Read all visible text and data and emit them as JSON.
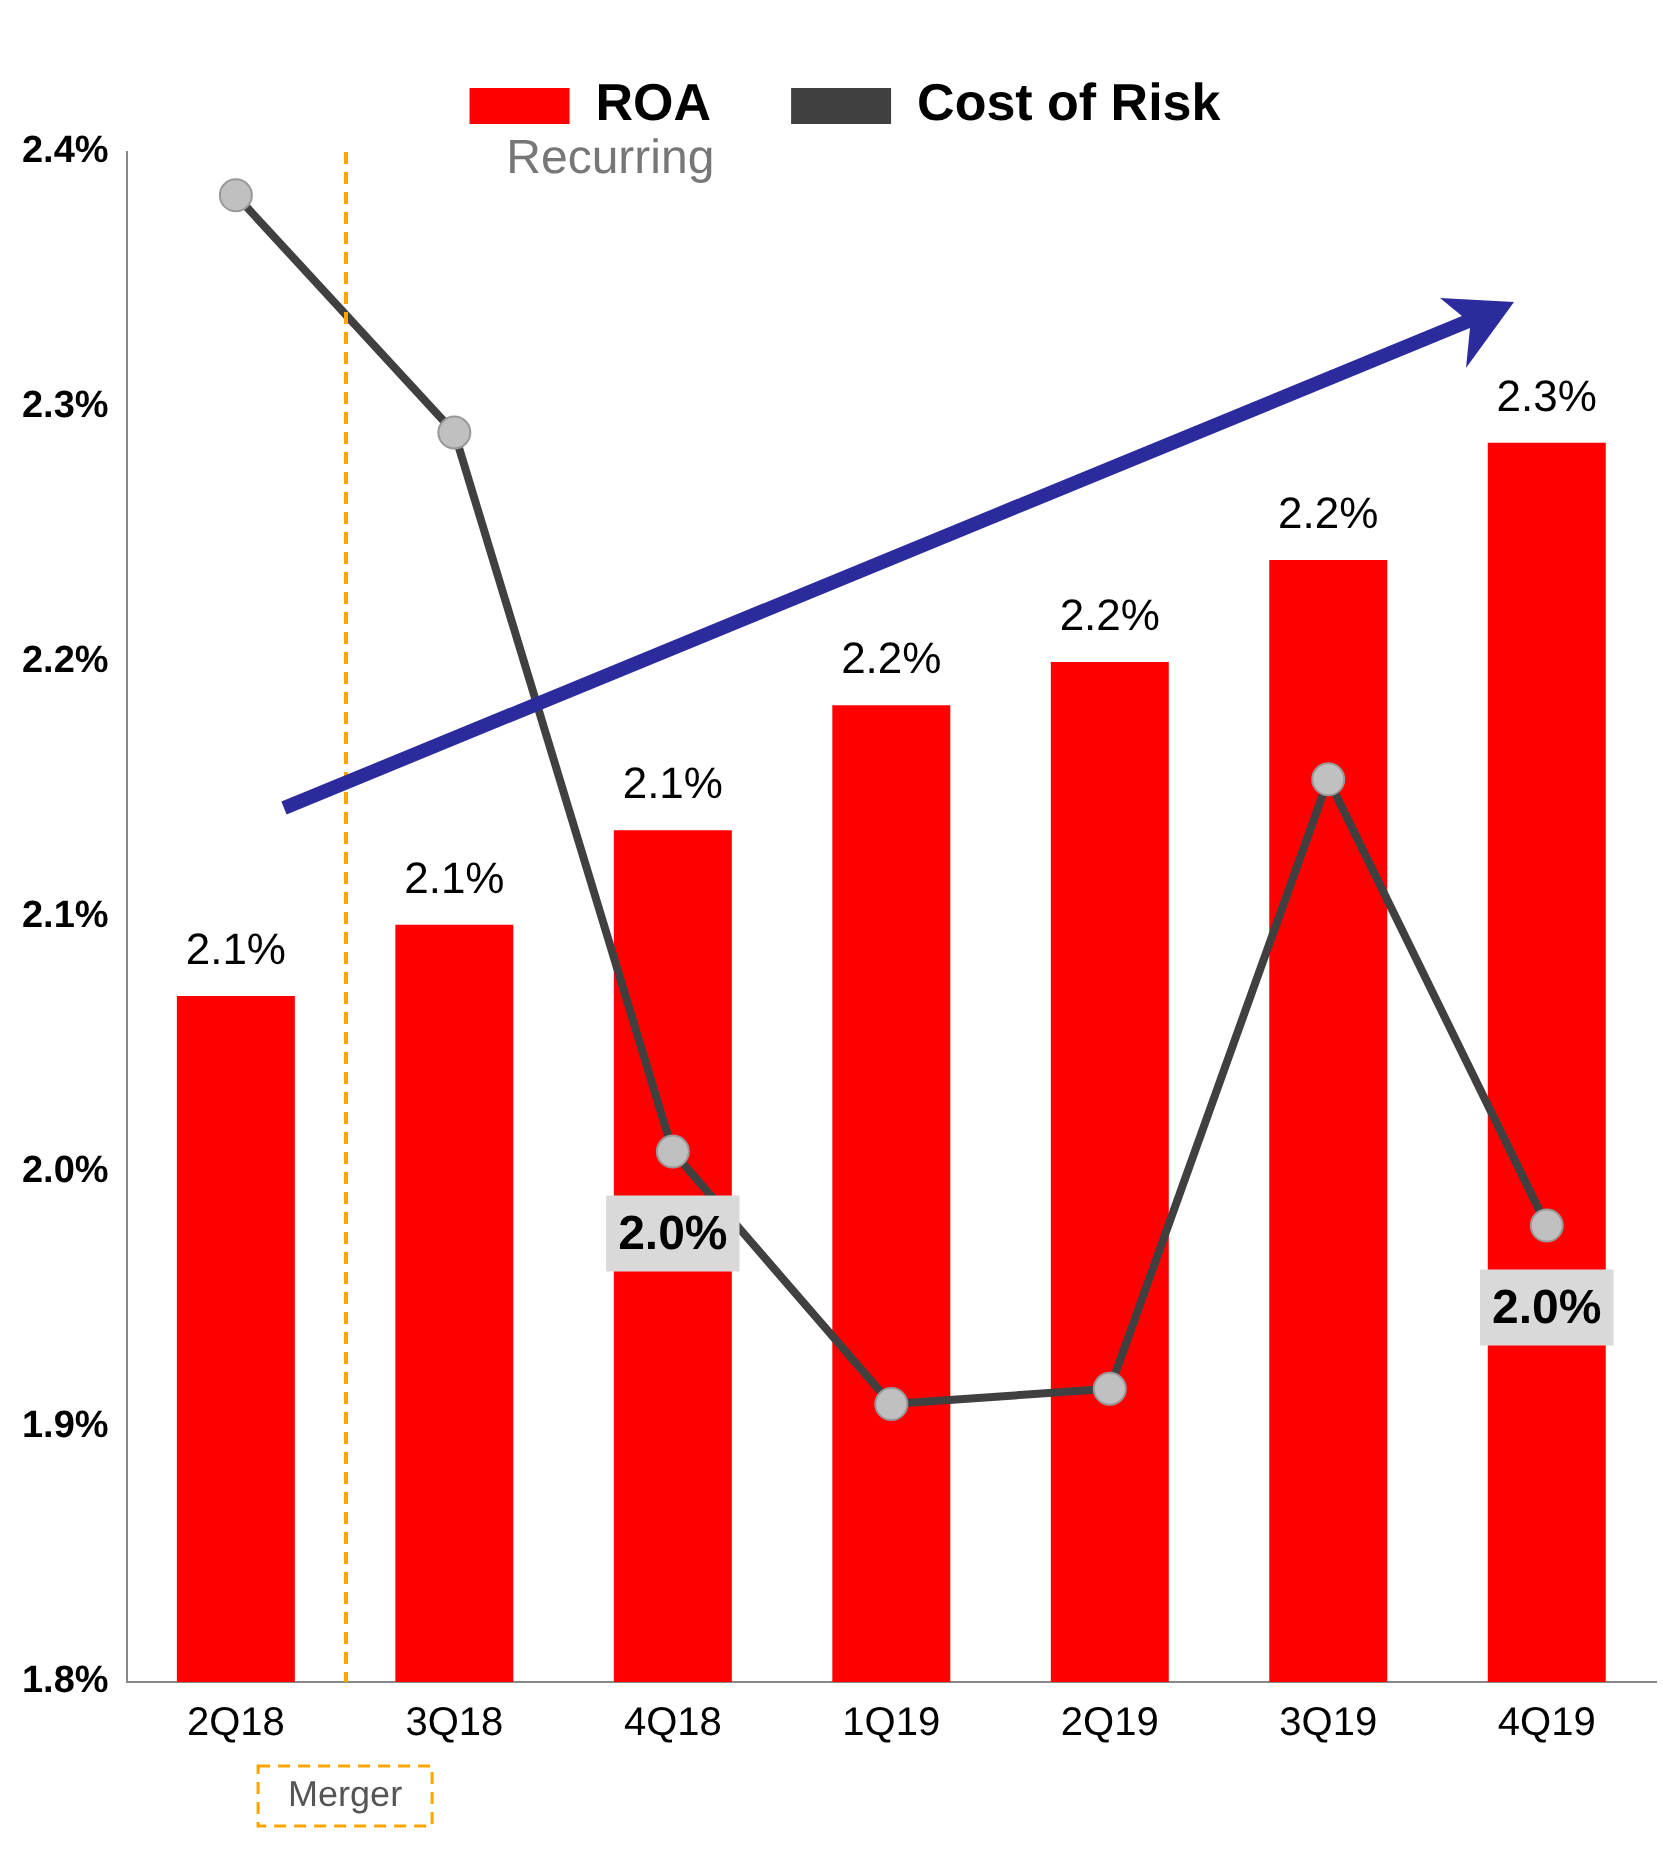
{
  "chart_data": {
    "type": "bar",
    "categories": [
      "2Q18",
      "3Q18",
      "4Q18",
      "1Q19",
      "2Q19",
      "3Q19",
      "4Q19"
    ],
    "series": [
      {
        "name": "ROA",
        "color": "#ff0000",
        "values": [
          2.069,
          2.097,
          2.134,
          2.183,
          2.2,
          2.24,
          2.286
        ],
        "value_labels": [
          "2.1%",
          "2.1%",
          "2.1%",
          "2.2%",
          "2.2%",
          "2.2%",
          "2.3%"
        ]
      },
      {
        "name": "Cost of Risk",
        "type": "line",
        "color": "#404040",
        "values": [
          2.383,
          2.29,
          2.008,
          1.909,
          1.915,
          2.154,
          1.979
        ],
        "value_labels": [
          null,
          null,
          "2.0%",
          null,
          null,
          null,
          "2.0%"
        ]
      }
    ],
    "ylim": [
      1.8,
      2.4
    ],
    "yticks": [
      {
        "value": 1.8,
        "label": "1.8%"
      },
      {
        "value": 1.9,
        "label": "1.9%"
      },
      {
        "value": 2.0,
        "label": "2.0%"
      },
      {
        "value": 2.1,
        "label": "2.1%"
      },
      {
        "value": 2.2,
        "label": "2.2%"
      },
      {
        "value": 2.3,
        "label": "2.3%"
      },
      {
        "value": 2.4,
        "label": "2.4%"
      }
    ],
    "annotations": [
      "Recurring",
      "Merger"
    ],
    "grid": false,
    "legend": "top",
    "marker": "circle",
    "line_style": "solid"
  }
}
